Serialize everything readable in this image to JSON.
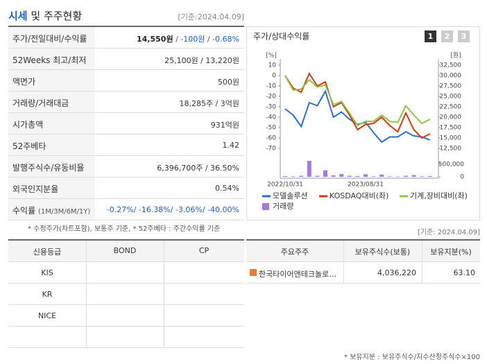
{
  "header": {
    "title_highlight": "시세",
    "title_rest": "및 주주현황",
    "date": "[기준:2024.04.09]"
  },
  "summary_table": {
    "rows": [
      {
        "label": "주가/전일대비/수익률",
        "value": [
          {
            "text": "14,550원",
            "color": "#222222",
            "bold": true
          },
          {
            "text": " / ",
            "color": "#555555"
          },
          {
            "text": "-100원",
            "color": "#1a5fc8"
          },
          {
            "text": " / ",
            "color": "#555555"
          },
          {
            "text": "-0.68%",
            "color": "#1a5fc8"
          }
        ]
      },
      {
        "label": "52Weeks 최고/최저",
        "value": [
          {
            "text": "25,100원 / 13,220원",
            "color": "#333333"
          }
        ]
      },
      {
        "label": "액면가",
        "value": [
          {
            "text": "500원",
            "color": "#333333"
          }
        ]
      },
      {
        "label": "거래량/거래대금",
        "value": [
          {
            "text": "18,285주 / 3억원",
            "color": "#333333"
          }
        ]
      },
      {
        "label": "시가총액",
        "value": [
          {
            "text": "931억원",
            "color": "#333333"
          }
        ]
      },
      {
        "label": "52주베타",
        "value": [
          {
            "text": "1.42",
            "color": "#333333"
          }
        ]
      },
      {
        "label": "발행주식수/유동비율",
        "value": [
          {
            "text": "6,396,700주 / 36.50%",
            "color": "#333333"
          }
        ]
      },
      {
        "label": "외국인지분율",
        "value": [
          {
            "text": "0.54%",
            "color": "#333333"
          }
        ]
      },
      {
        "label": "수익률",
        "label_note": "(1M/3M/6M/1Y)",
        "value": [
          {
            "text": "-0.27%/ -16.38%/ -3.06%/ -40.00%",
            "color": "#1a5fc8"
          }
        ]
      }
    ]
  },
  "chart_data": {
    "type": "line",
    "title": "주가/상대수익률",
    "buttons": [
      "1",
      "2",
      "3"
    ],
    "ylabel": "[%]",
    "y2label": "[원]",
    "categories": [
      "2022/10/31",
      null,
      null,
      null,
      null,
      null,
      null,
      null,
      null,
      null,
      "2023/08/31",
      null,
      null,
      null,
      null,
      null,
      null,
      null,
      null
    ],
    "ylim": [
      -70,
      10
    ],
    "yticks": [
      10,
      0,
      -10,
      -20,
      -30,
      -40,
      -50,
      -60,
      -70
    ],
    "y2lim": [
      12500,
      32500
    ],
    "y2ticks": [
      {
        "value": 32500,
        "label": "32,500"
      },
      {
        "value": 30000,
        "label": "30,000"
      },
      {
        "value": 27500,
        "label": "27,500"
      },
      {
        "value": 25000,
        "label": "25,000"
      },
      {
        "value": 22500,
        "label": "22,500"
      },
      {
        "value": 20000,
        "label": "20,000"
      },
      {
        "value": 17500,
        "label": "17,500"
      },
      {
        "value": 15000,
        "label": "15,000"
      },
      {
        "value": 12500,
        "label": "12,500"
      }
    ],
    "y3lim": [
      0,
      500000
    ],
    "y3ticks": [
      {
        "value": 500000,
        "label": "500,000"
      },
      0
    ],
    "series": [
      {
        "name": "모델솔루션",
        "color": "#2a6fd6",
        "values": [
          -32,
          -38,
          -49,
          -26,
          -29,
          -15,
          -40,
          -35,
          -42,
          -47,
          -45,
          -55,
          -64,
          -59,
          -59,
          -54,
          -58,
          -59,
          -62
        ]
      },
      {
        "name": "KOSDAQ대비(좌)",
        "color": "#d23a0e",
        "values": [
          0,
          -12,
          -16,
          2,
          -10,
          -6,
          -30,
          -26,
          -38,
          -52,
          -47,
          -46,
          -40,
          -48,
          -54,
          -36,
          -52,
          -60,
          -56
        ]
      },
      {
        "name": "기계,장비대비(좌)",
        "color": "#8ec63f",
        "values": [
          0,
          -14,
          -13,
          -4,
          -11,
          -9,
          -28,
          -25,
          -36,
          -48,
          -44,
          -44,
          -38,
          -44,
          -45,
          -29,
          -38,
          -46,
          -42
        ]
      },
      {
        "name": "거래량",
        "color": "#a678e0",
        "type": "bar",
        "axis": "y3",
        "values": [
          30000,
          20000,
          40000,
          640000,
          40000,
          260000,
          60000,
          110000,
          40000,
          30000,
          100000,
          20000,
          90000,
          20000,
          15000,
          40000,
          70000,
          20000,
          30000
        ]
      }
    ]
  },
  "notes": {
    "basis": "* 수정주가(차트포함), 보통주 기준, * 52주베타 : 주간수익률 기준",
    "date": "[기준: 2024.04.09]"
  },
  "credit_table": {
    "headers": [
      "신용등급",
      "BOND",
      "CP"
    ],
    "agencies": [
      "KIS",
      "KR",
      "NICE"
    ]
  },
  "shareholder_table": {
    "headers": [
      "주요주주",
      "보유주식수(보통)",
      "보유지분(%)"
    ],
    "rows": [
      {
        "name": "한국타이어앤테크놀로…",
        "shares": "4,036,220",
        "stake": "63.10"
      }
    ],
    "note": "* 보유지분 : 보유주식수/지수산정주식수×100"
  }
}
